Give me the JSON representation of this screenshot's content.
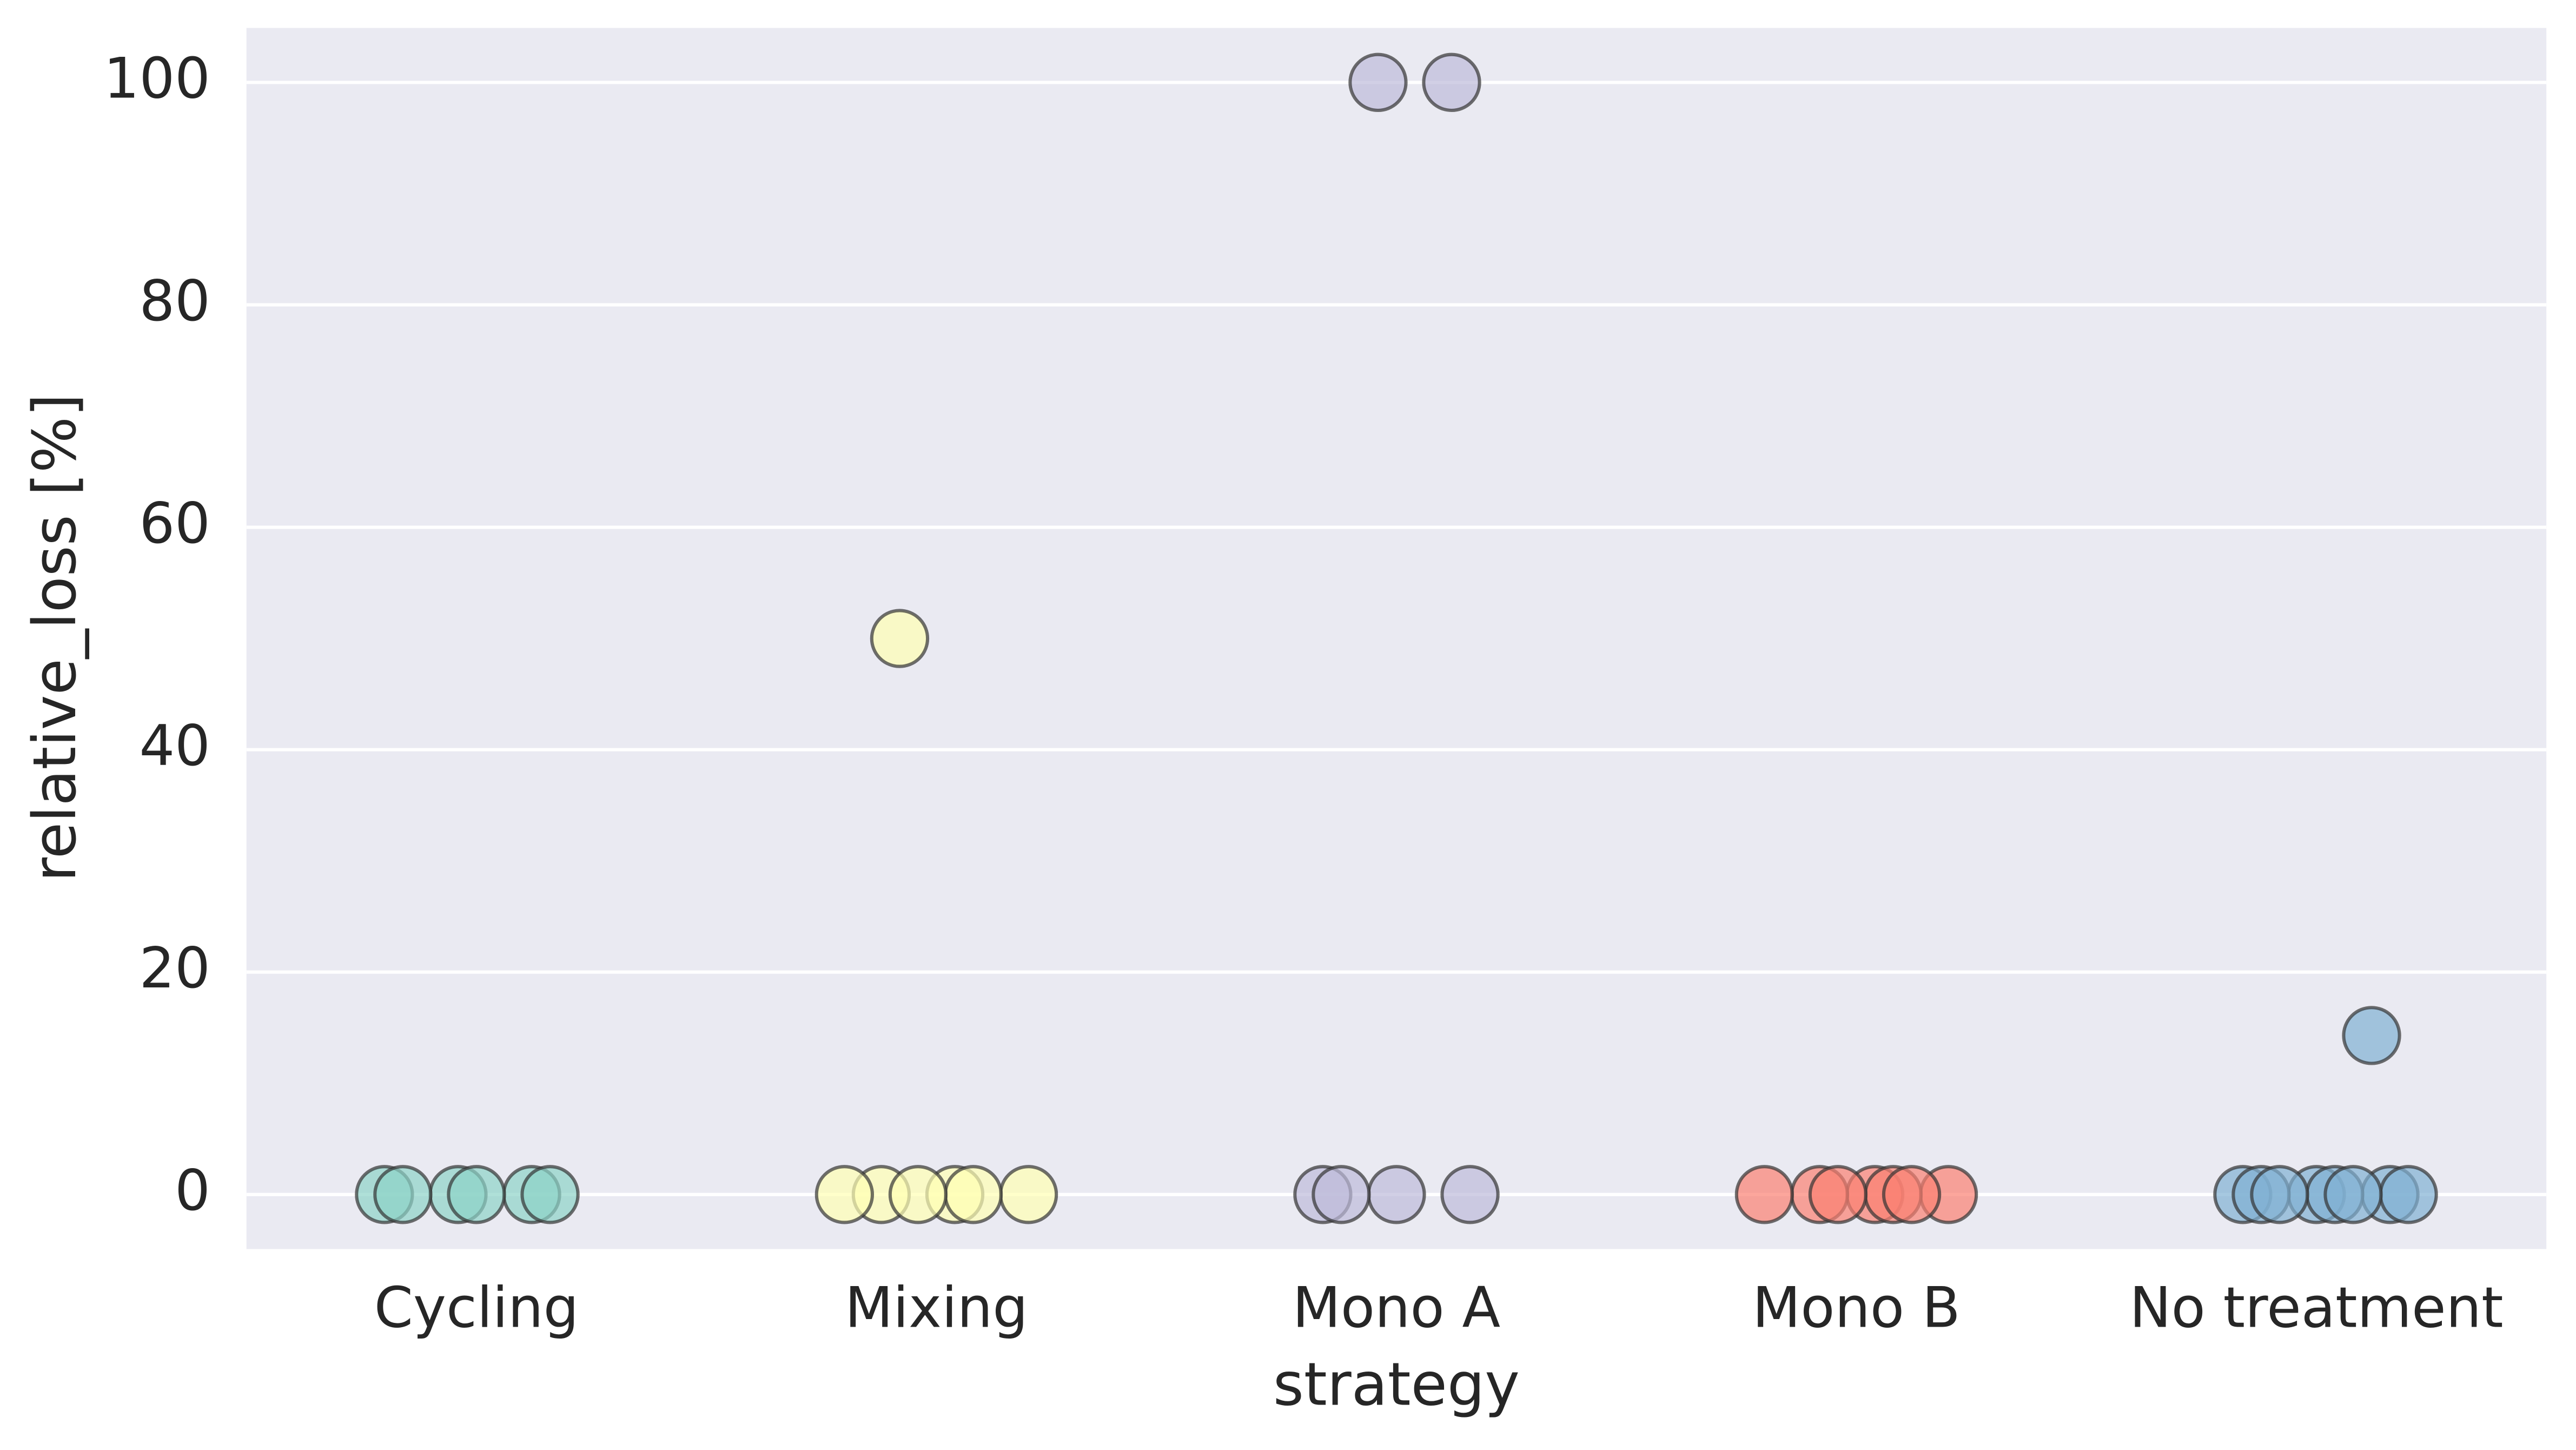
{
  "chart_data": {
    "type": "strip",
    "xlabel": "strategy",
    "ylabel": "relative_loss [%]",
    "categories": [
      "Cycling",
      "Mixing",
      "Mono A",
      "Mono B",
      "No treatment"
    ],
    "colors": [
      "#8dd3c7",
      "#ffffb3",
      "#bebada",
      "#fb8072",
      "#80b1d3"
    ],
    "values": [
      [
        0,
        0,
        0,
        0,
        0,
        0
      ],
      [
        0,
        0,
        0,
        50,
        0,
        0,
        0
      ],
      [
        100,
        100,
        0,
        0,
        0,
        0
      ],
      [
        0,
        0,
        0,
        0,
        0,
        0,
        0
      ],
      [
        14.3,
        0,
        0,
        0,
        0,
        0,
        0,
        0,
        0
      ]
    ],
    "ylim": [
      -4.9,
      104.9
    ],
    "yticks": [
      0,
      20,
      40,
      60,
      80,
      100
    ],
    "grid": true
  }
}
